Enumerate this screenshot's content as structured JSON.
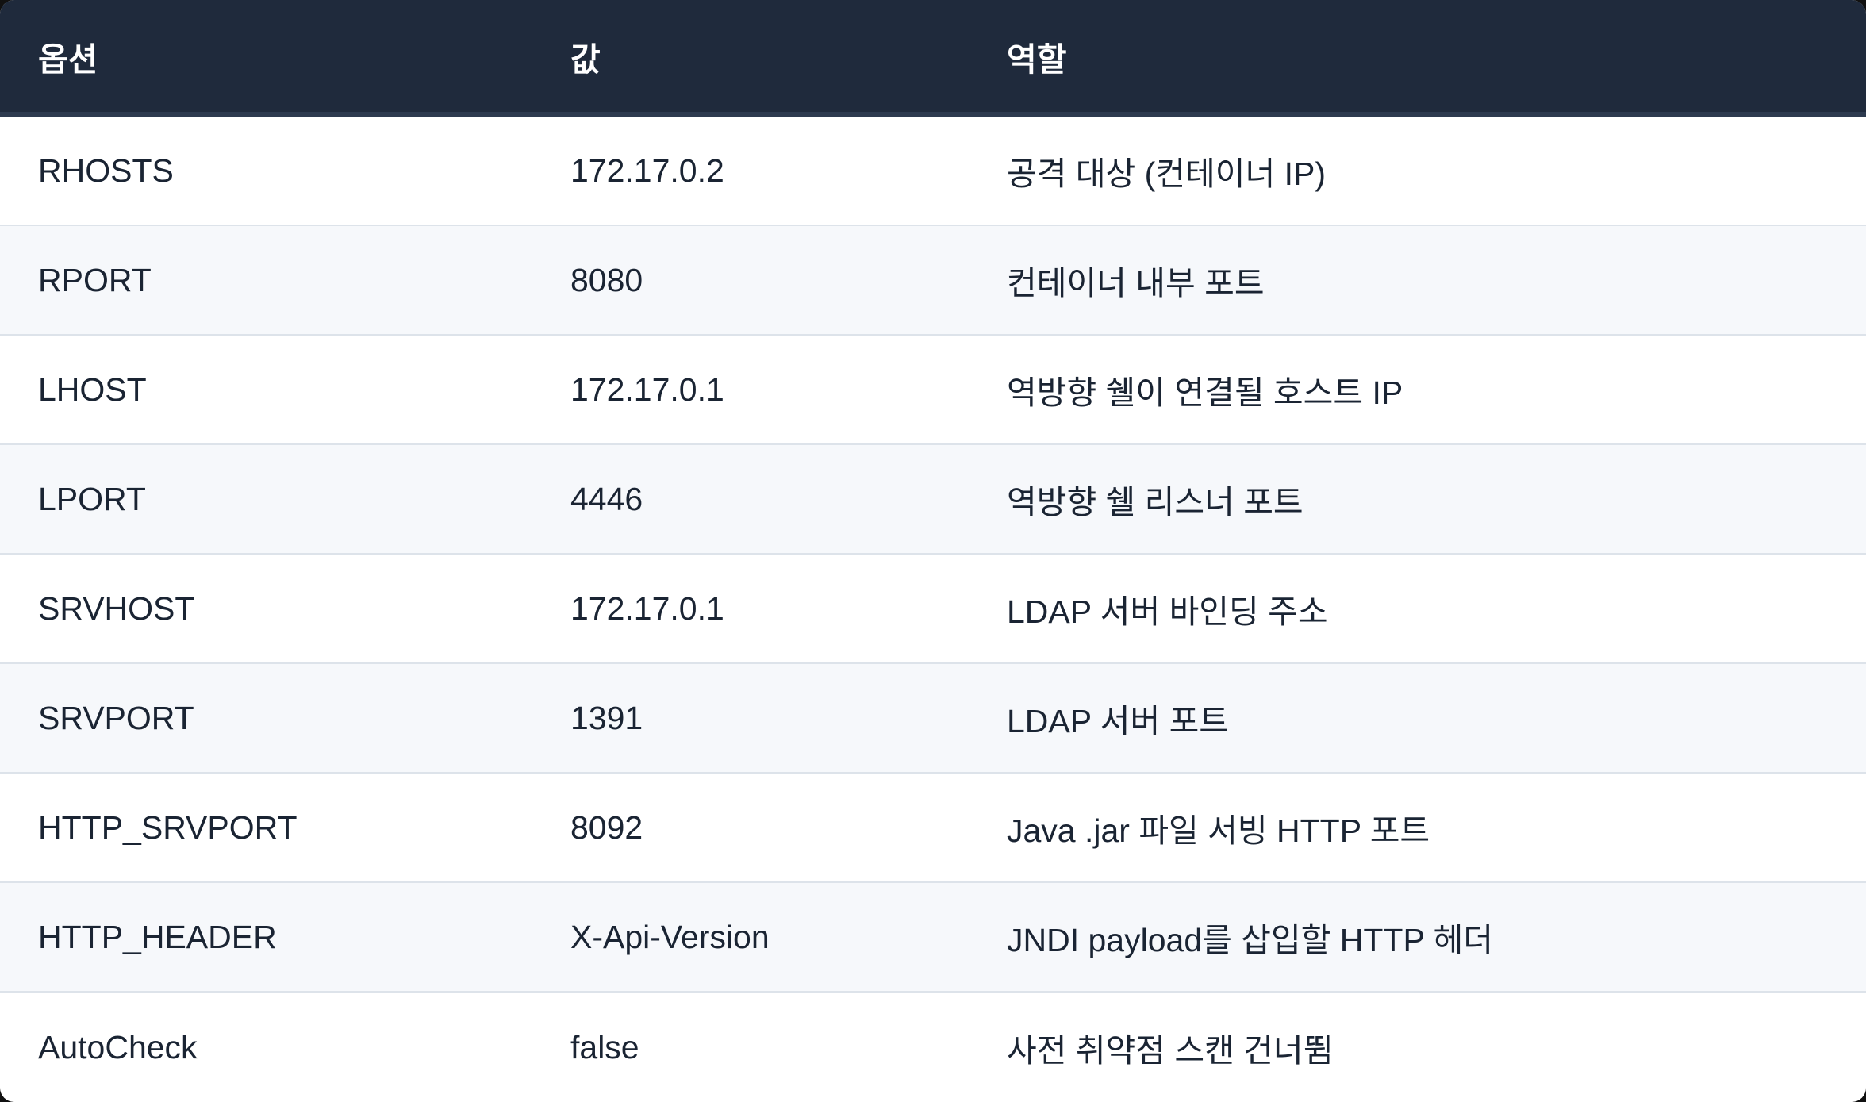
{
  "table": {
    "headers": [
      "옵션",
      "값",
      "역할"
    ],
    "rows": [
      [
        "RHOSTS",
        "172.17.0.2",
        "공격 대상 (컨테이너 IP)"
      ],
      [
        "RPORT",
        "8080",
        "컨테이너 내부 포트"
      ],
      [
        "LHOST",
        "172.17.0.1",
        "역방향 쉘이 연결될 호스트 IP"
      ],
      [
        "LPORT",
        "4446",
        "역방향 쉘 리스너 포트"
      ],
      [
        "SRVHOST",
        "172.17.0.1",
        "LDAP 서버 바인딩 주소"
      ],
      [
        "SRVPORT",
        "1391",
        "LDAP 서버 포트"
      ],
      [
        "HTTP_SRVPORT",
        "8092",
        "Java .jar 파일 서빙 HTTP 포트"
      ],
      [
        "HTTP_HEADER",
        "X-Api-Version",
        "JNDI payload를 삽입할 HTTP 헤더"
      ],
      [
        "AutoCheck",
        "false",
        "사전 취약점 스캔 건너뜀"
      ]
    ]
  },
  "colors": {
    "header_bg": "#1f2a3c",
    "row_alt_bg": "#f6f8fb",
    "text": "#1a2433"
  }
}
